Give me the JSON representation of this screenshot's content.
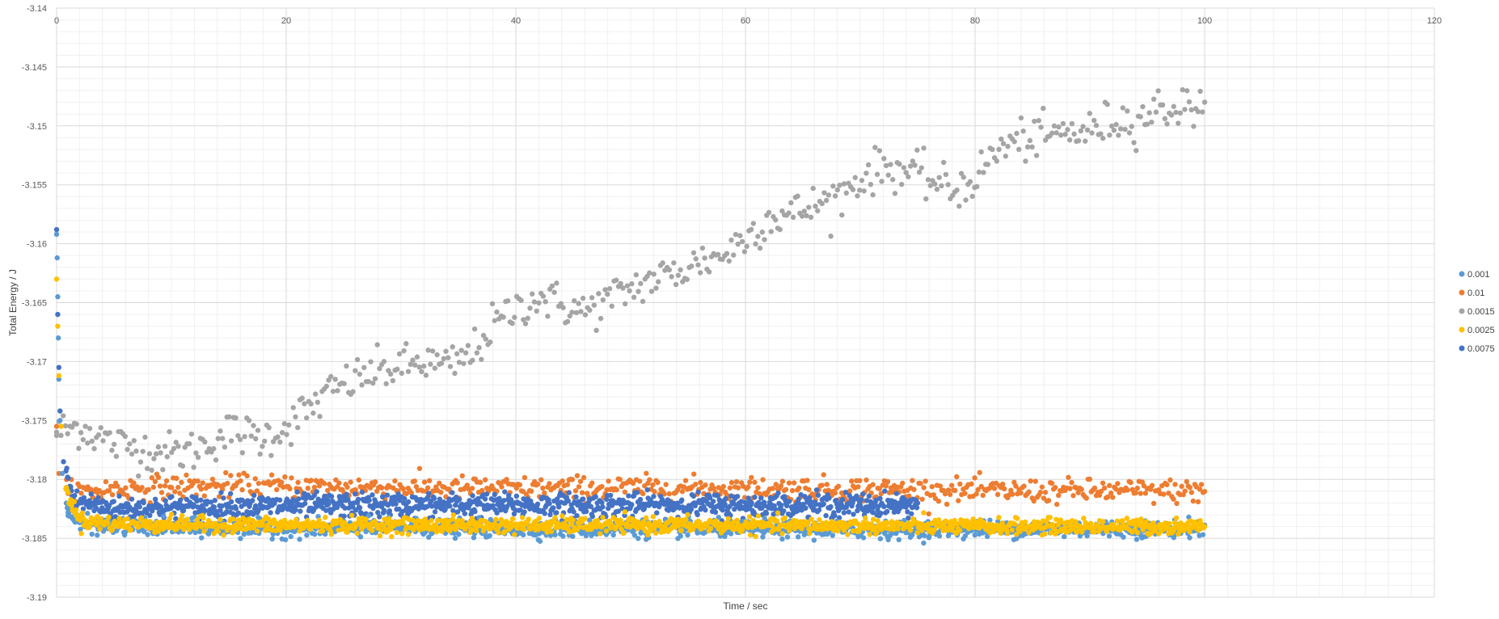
{
  "chart_data": {
    "type": "scatter",
    "title": "",
    "xlabel": "Time / sec",
    "ylabel": "Total Energy / J",
    "xlim": [
      0,
      120
    ],
    "ylim": [
      -3.19,
      -3.14
    ],
    "x_ticks": [
      "0",
      "20",
      "40",
      "60",
      "80",
      "100",
      "120"
    ],
    "y_ticks": [
      "-3.14",
      "-3.145",
      "-3.15",
      "-3.155",
      "-3.16",
      "-3.165",
      "-3.17",
      "-3.175",
      "-3.18",
      "-3.185",
      "-3.19"
    ],
    "x_tick_values": [
      0,
      20,
      40,
      60,
      80,
      100,
      120
    ],
    "y_tick_values": [
      -3.14,
      -3.145,
      -3.15,
      -3.155,
      -3.16,
      -3.165,
      -3.17,
      -3.175,
      -3.18,
      -3.185,
      -3.19
    ],
    "grid": true,
    "legend_position": "right",
    "series": [
      {
        "name": "0.001",
        "color": "#5B9BD5",
        "x_range": [
          0,
          100
        ],
        "points": [
          [
            0,
            -3.1592
          ],
          [
            0.05,
            -3.1612
          ],
          [
            0.1,
            -3.1645
          ],
          [
            0.15,
            -3.168
          ],
          [
            0.2,
            -3.1715
          ],
          [
            0.3,
            -3.175
          ],
          [
            0.5,
            -3.1795
          ],
          [
            1,
            -3.1828
          ],
          [
            2,
            -3.1838
          ],
          [
            5,
            -3.184
          ],
          [
            10,
            -3.1841
          ],
          [
            20,
            -3.1842
          ],
          [
            30,
            -3.1841
          ],
          [
            40,
            -3.1842
          ],
          [
            50,
            -3.1842
          ],
          [
            60,
            -3.1842
          ],
          [
            70,
            -3.1843
          ],
          [
            80,
            -3.1842
          ],
          [
            90,
            -3.1842
          ],
          [
            100,
            -3.1842
          ]
        ]
      },
      {
        "name": "0.01",
        "color": "#ED7D31",
        "x_range": [
          0,
          100
        ],
        "points": [
          [
            0,
            -3.1755
          ],
          [
            0.2,
            -3.1795
          ],
          [
            1,
            -3.1812
          ],
          [
            5,
            -3.1808
          ],
          [
            10,
            -3.1806
          ],
          [
            20,
            -3.1806
          ],
          [
            30,
            -3.1807
          ],
          [
            40,
            -3.1808
          ],
          [
            50,
            -3.1807
          ],
          [
            60,
            -3.1808
          ],
          [
            70,
            -3.1808
          ],
          [
            80,
            -3.181
          ],
          [
            90,
            -3.181
          ],
          [
            100,
            -3.181
          ]
        ]
      },
      {
        "name": "0.0015",
        "color": "#A5A5A5",
        "x_range": [
          0,
          100
        ],
        "points": [
          [
            0,
            -3.176
          ],
          [
            2,
            -3.1755
          ],
          [
            5,
            -3.177
          ],
          [
            8,
            -3.1775
          ],
          [
            10,
            -3.1778
          ],
          [
            12,
            -3.1775
          ],
          [
            15,
            -3.176
          ],
          [
            18,
            -3.1765
          ],
          [
            20,
            -3.1755
          ],
          [
            22,
            -3.174
          ],
          [
            24,
            -3.1725
          ],
          [
            26,
            -3.1715
          ],
          [
            28,
            -3.1708
          ],
          [
            30,
            -3.1705
          ],
          [
            32,
            -3.17
          ],
          [
            34,
            -3.1705
          ],
          [
            36,
            -3.1695
          ],
          [
            38,
            -3.167
          ],
          [
            40,
            -3.1655
          ],
          [
            42,
            -3.1645
          ],
          [
            44,
            -3.1652
          ],
          [
            46,
            -3.1658
          ],
          [
            48,
            -3.1648
          ],
          [
            50,
            -3.1638
          ],
          [
            52,
            -3.163
          ],
          [
            54,
            -3.1625
          ],
          [
            56,
            -3.1615
          ],
          [
            58,
            -3.161
          ],
          [
            60,
            -3.1595
          ],
          [
            62,
            -3.1578
          ],
          [
            64,
            -3.1575
          ],
          [
            66,
            -3.1568
          ],
          [
            68,
            -3.156
          ],
          [
            70,
            -3.1545
          ],
          [
            72,
            -3.1535
          ],
          [
            74,
            -3.1538
          ],
          [
            76,
            -3.1545
          ],
          [
            78,
            -3.1555
          ],
          [
            80,
            -3.1545
          ],
          [
            82,
            -3.152
          ],
          [
            84,
            -3.1512
          ],
          [
            86,
            -3.151
          ],
          [
            88,
            -3.1505
          ],
          [
            90,
            -3.1505
          ],
          [
            92,
            -3.1495
          ],
          [
            94,
            -3.1495
          ],
          [
            96,
            -3.1485
          ],
          [
            98,
            -3.1485
          ],
          [
            100,
            -3.148
          ]
        ]
      },
      {
        "name": "0.0025",
        "color": "#FFC000",
        "x_range": [
          0,
          100
        ],
        "points": [
          [
            0,
            -3.163
          ],
          [
            0.1,
            -3.167
          ],
          [
            0.2,
            -3.1712
          ],
          [
            0.4,
            -3.1755
          ],
          [
            0.8,
            -3.1808
          ],
          [
            2,
            -3.1835
          ],
          [
            5,
            -3.1838
          ],
          [
            20,
            -3.1839
          ],
          [
            40,
            -3.1839
          ],
          [
            60,
            -3.1839
          ],
          [
            80,
            -3.184
          ],
          [
            100,
            -3.184
          ]
        ]
      },
      {
        "name": "0.0075",
        "color": "#4472C4",
        "x_range": [
          0,
          75
        ],
        "points": [
          [
            0,
            -3.1588
          ],
          [
            0.1,
            -3.166
          ],
          [
            0.2,
            -3.1705
          ],
          [
            0.3,
            -3.1742
          ],
          [
            0.6,
            -3.1785
          ],
          [
            1.5,
            -3.1818
          ],
          [
            5,
            -3.1825
          ],
          [
            15,
            -3.1823
          ],
          [
            25,
            -3.1822
          ],
          [
            35,
            -3.1822
          ],
          [
            45,
            -3.1822
          ],
          [
            55,
            -3.1822
          ],
          [
            65,
            -3.1822
          ],
          [
            75,
            -3.1822
          ]
        ]
      }
    ]
  }
}
